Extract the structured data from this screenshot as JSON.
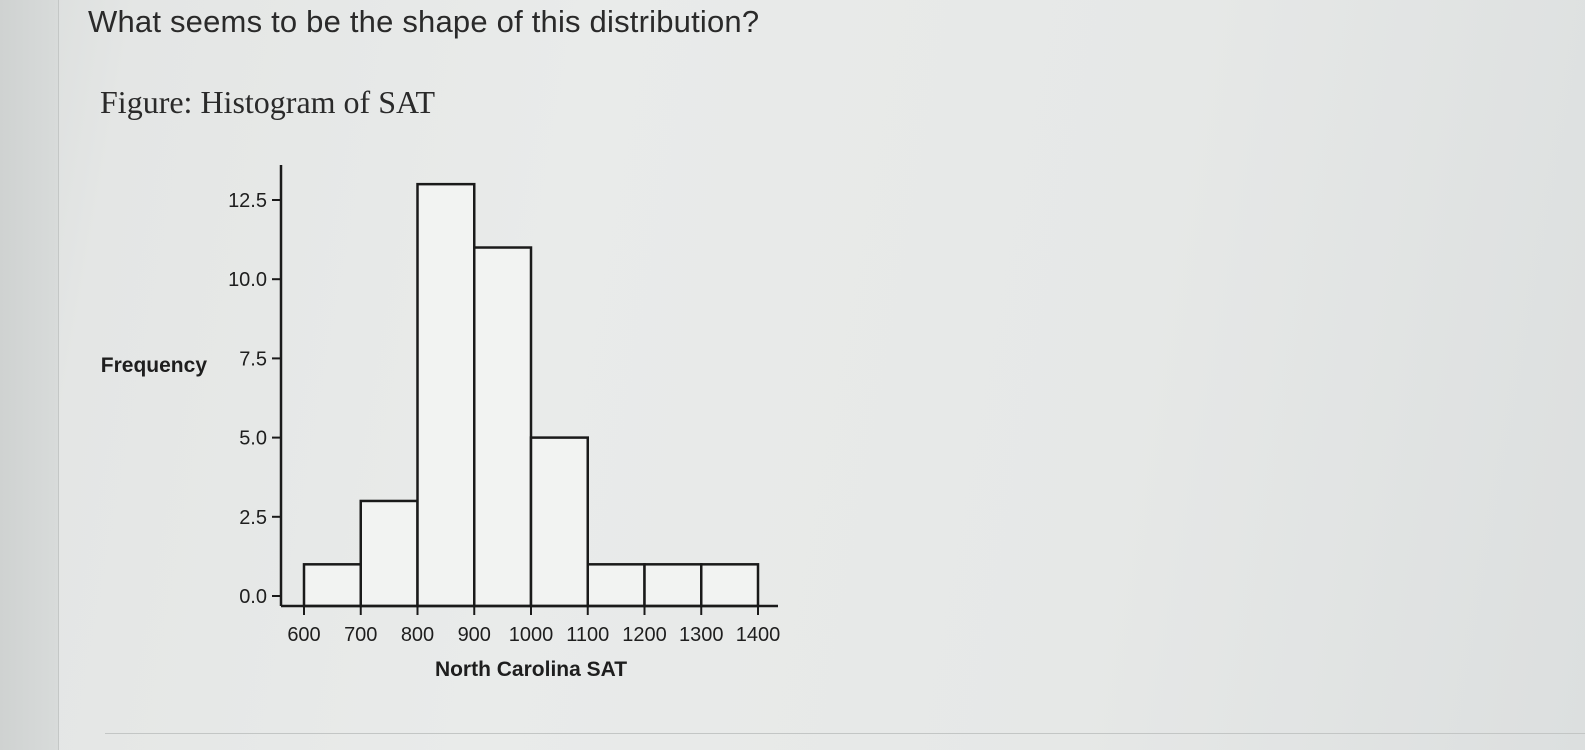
{
  "question": {
    "text": "What seems to be the shape of this distribution?"
  },
  "figure": {
    "caption": "Figure: Histogram of SAT"
  },
  "chart_data": {
    "type": "bar",
    "subtype": "histogram",
    "xlabel": "North Carolina SAT",
    "ylabel": "Frequency",
    "x_ticks": [
      600,
      700,
      800,
      900,
      1000,
      1100,
      1200,
      1300,
      1400
    ],
    "x_tick_labels": [
      "600",
      "700",
      "800",
      "900",
      "1000",
      "1100",
      "1200",
      "1300",
      "1400"
    ],
    "y_ticks": [
      0,
      2.5,
      5,
      7.5,
      10,
      12.5
    ],
    "y_tick_labels": [
      "0.0",
      "2.5",
      "5.0",
      "7.5",
      "10.0",
      "12.5"
    ],
    "xlim": [
      560,
      1430
    ],
    "ylim": [
      0,
      13.6
    ],
    "bins": [
      {
        "start": 600,
        "end": 700,
        "count": 1
      },
      {
        "start": 700,
        "end": 800,
        "count": 3
      },
      {
        "start": 800,
        "end": 900,
        "count": 13
      },
      {
        "start": 900,
        "end": 1000,
        "count": 11
      },
      {
        "start": 1000,
        "end": 1100,
        "count": 5
      },
      {
        "start": 1100,
        "end": 1200,
        "count": 1
      },
      {
        "start": 1200,
        "end": 1300,
        "count": 1
      },
      {
        "start": 1300,
        "end": 1400,
        "count": 1
      }
    ],
    "grid": false,
    "legend": "none",
    "colors": {
      "bar_fill": "#f2f3f2",
      "bar_stroke": "#1a1a1a",
      "axis": "#1a1a1a"
    }
  }
}
